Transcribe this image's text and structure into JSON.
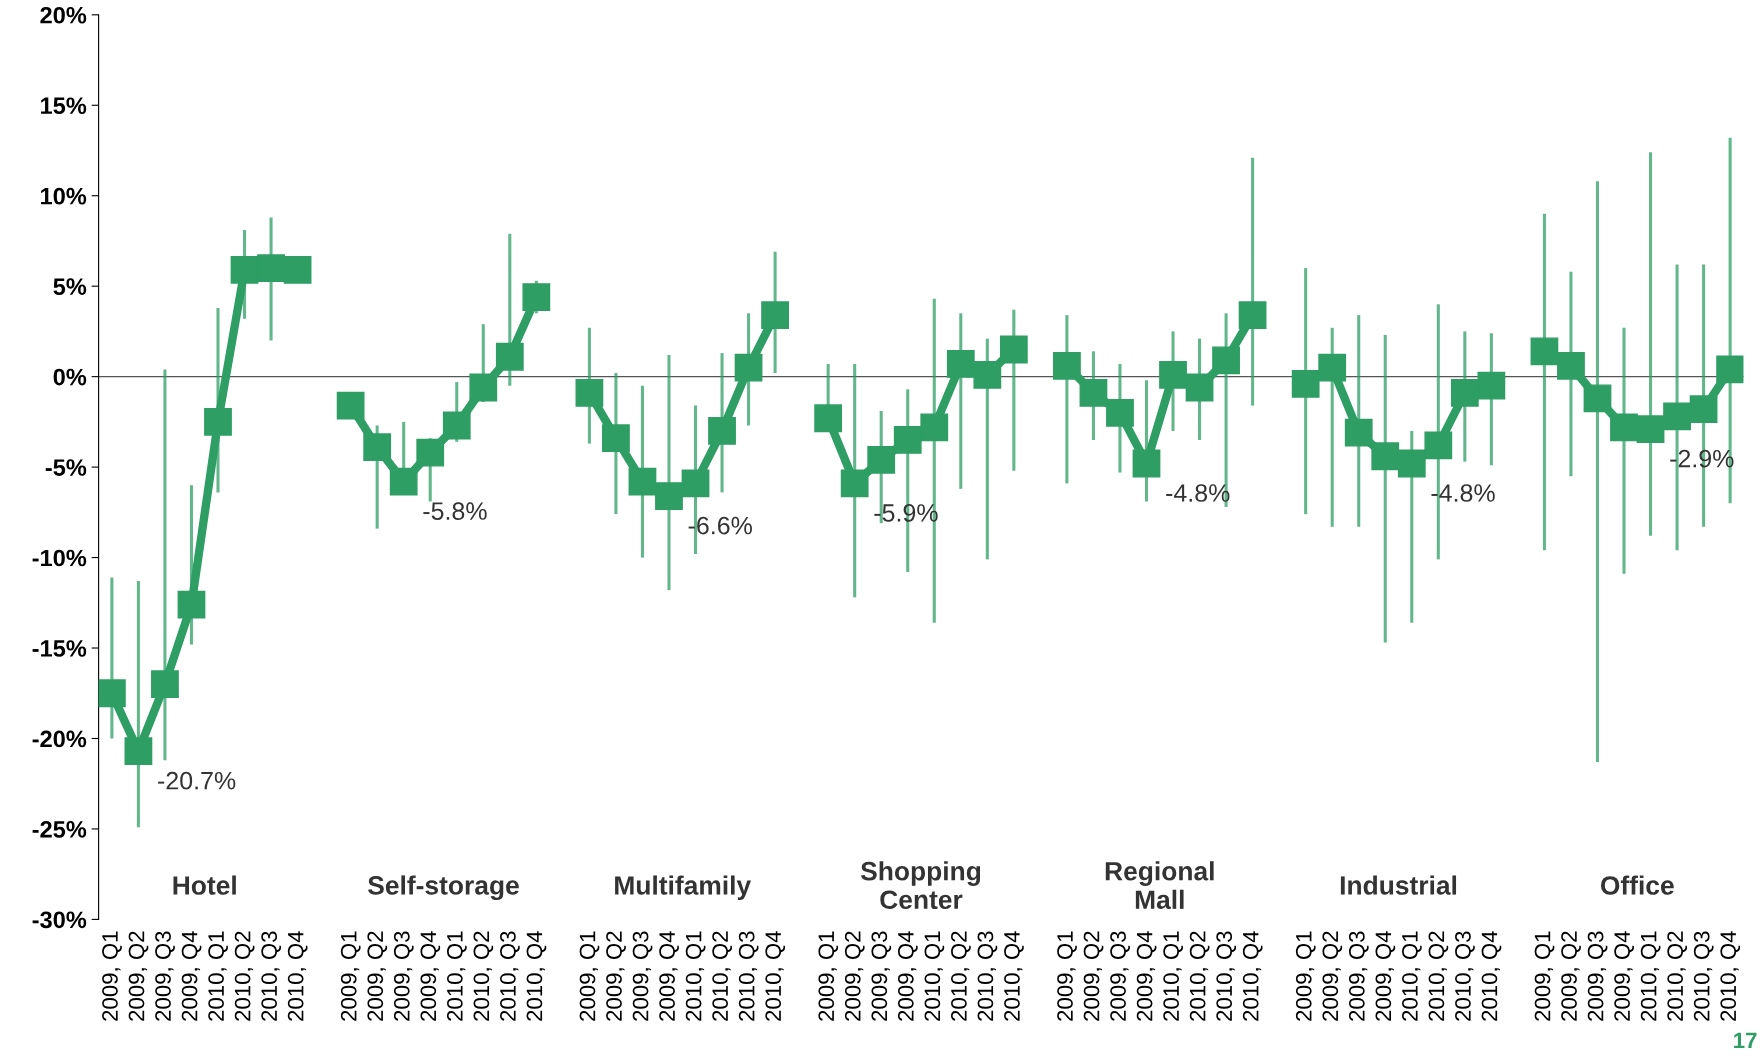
{
  "chart_data": {
    "type": "line",
    "categories": [
      "2009, Q1",
      "2009, Q2",
      "2009, Q3",
      "2009, Q4",
      "2010, Q1",
      "2010, Q2",
      "2010, Q3",
      "2010, Q4",
      null,
      "2009, Q1",
      "2009, Q2",
      "2009, Q3",
      "2009, Q4",
      "2010, Q1",
      "2010, Q2",
      "2010, Q3",
      "2010, Q4",
      null,
      "2009, Q1",
      "2009, Q2",
      "2009, Q3",
      "2009, Q4",
      "2010, Q1",
      "2010, Q2",
      "2010, Q3",
      "2010, Q4",
      null,
      "2009, Q1",
      "2009, Q2",
      "2009, Q3",
      "2009, Q4",
      "2010, Q1",
      "2010, Q2",
      "2010, Q3",
      "2010, Q4",
      null,
      "2009, Q1",
      "2009, Q2",
      "2009, Q3",
      "2009, Q4",
      "2010, Q1",
      "2010, Q2",
      "2010, Q3",
      "2010, Q4",
      null,
      "2009, Q1",
      "2009, Q2",
      "2009, Q3",
      "2009, Q4",
      "2010, Q1",
      "2010, Q2",
      "2010, Q3",
      "2010, Q4",
      null,
      "2009, Q1",
      "2009, Q2",
      "2009, Q3",
      "2009, Q4",
      "2010, Q1",
      "2010, Q2",
      "2010, Q3",
      "2010, Q4"
    ],
    "series": [
      {
        "color": "#2e9e64",
        "values": [
          -17.5,
          -20.7,
          -17.0,
          -12.6,
          -2.5,
          5.9,
          6.0,
          5.9,
          null,
          -1.6,
          -3.9,
          -5.8,
          -4.2,
          -2.7,
          -0.6,
          1.1,
          4.4,
          null,
          -0.9,
          -3.4,
          -5.8,
          -6.6,
          -5.9,
          -3.0,
          0.5,
          3.4,
          null,
          -2.3,
          -5.9,
          -4.6,
          -3.5,
          -2.8,
          0.7,
          0.1,
          1.5,
          null,
          0.6,
          -0.9,
          -2.0,
          -4.8,
          0.1,
          -0.6,
          0.9,
          3.4,
          null,
          -0.4,
          0.5,
          -3.1,
          -4.4,
          -4.8,
          -3.8,
          -0.9,
          -0.5,
          null,
          1.4,
          0.6,
          -1.2,
          -2.8,
          -2.9,
          -2.2,
          -1.8,
          0.4
        ],
        "errors": [
          [
            -20.0,
            -11.1
          ],
          [
            -24.9,
            -11.3
          ],
          [
            -21.2,
            0.4
          ],
          [
            -14.8,
            -6.0
          ],
          [
            -6.4,
            3.8
          ],
          [
            3.2,
            8.1
          ],
          [
            2.0,
            8.8
          ],
          null,
          null,
          null,
          [
            -8.4,
            -2.7
          ],
          [
            -6.4,
            -2.5
          ],
          [
            -6.9,
            -3.4
          ],
          [
            -3.6,
            -0.3
          ],
          [
            -1.4,
            2.9
          ],
          [
            -0.5,
            7.9
          ],
          [
            3.5,
            5.3
          ],
          null,
          [
            -3.7,
            2.7
          ],
          [
            -7.6,
            0.2
          ],
          [
            -10.0,
            -0.5
          ],
          [
            -11.8,
            1.2
          ],
          [
            -9.8,
            -1.6
          ],
          [
            -6.4,
            1.3
          ],
          [
            -2.7,
            3.5
          ],
          [
            0.2,
            6.9
          ],
          null,
          [
            -3.0,
            0.7
          ],
          [
            -12.2,
            0.7
          ],
          [
            -8.1,
            -1.9
          ],
          [
            -10.8,
            -0.7
          ],
          [
            -13.6,
            4.3
          ],
          [
            -6.2,
            3.5
          ],
          [
            -10.1,
            2.1
          ],
          [
            -5.2,
            3.7
          ],
          null,
          [
            -5.9,
            3.4
          ],
          [
            -3.5,
            1.4
          ],
          [
            -5.3,
            0.7
          ],
          [
            -6.9,
            -0.2
          ],
          [
            -3.0,
            2.5
          ],
          [
            -3.5,
            2.1
          ],
          [
            -7.2,
            3.5
          ],
          [
            -1.6,
            12.1
          ],
          null,
          [
            -7.6,
            6.0
          ],
          [
            -8.3,
            2.7
          ],
          [
            -8.3,
            3.4
          ],
          [
            -14.7,
            2.3
          ],
          [
            -13.6,
            -3.0
          ],
          [
            -10.1,
            4.0
          ],
          [
            -4.7,
            2.5
          ],
          [
            -4.9,
            2.4
          ],
          null,
          [
            -9.6,
            9.0
          ],
          [
            -5.5,
            5.8
          ],
          [
            -21.3,
            10.8
          ],
          [
            -10.9,
            2.7
          ],
          [
            -8.8,
            12.4
          ],
          [
            -9.6,
            6.2
          ],
          [
            -8.3,
            6.2
          ],
          [
            -7.0,
            13.2
          ]
        ]
      }
    ],
    "marker": "square",
    "line_style": "solid",
    "grid": false,
    "legend": false,
    "ylim": [
      -30,
      20
    ],
    "yticks": [
      {
        "value": -30,
        "label": "-30%"
      },
      {
        "value": -25,
        "label": "-25%"
      },
      {
        "value": -20,
        "label": "-20%"
      },
      {
        "value": -15,
        "label": "-15%"
      },
      {
        "value": -10,
        "label": "-10%"
      },
      {
        "value": -5,
        "label": "-5%"
      },
      {
        "value": 0,
        "label": "0%"
      },
      {
        "value": 5,
        "label": "5%"
      },
      {
        "value": 10,
        "label": "10%"
      },
      {
        "value": 15,
        "label": "15%"
      },
      {
        "value": 20,
        "label": "20%"
      }
    ],
    "ref_lines": [
      {
        "axis": "y",
        "value": 0,
        "color": "#555555"
      }
    ],
    "annotations": [
      "Hotel",
      "Self-storage",
      "Multifamily",
      "Shopping\nCenter",
      "Regional\nMall",
      "Industrial",
      "Office",
      "-20.7%",
      "-5.8%",
      "-6.6%",
      "-5.9%",
      "-4.8%",
      "-4.8%",
      "-2.9%",
      "17"
    ]
  }
}
